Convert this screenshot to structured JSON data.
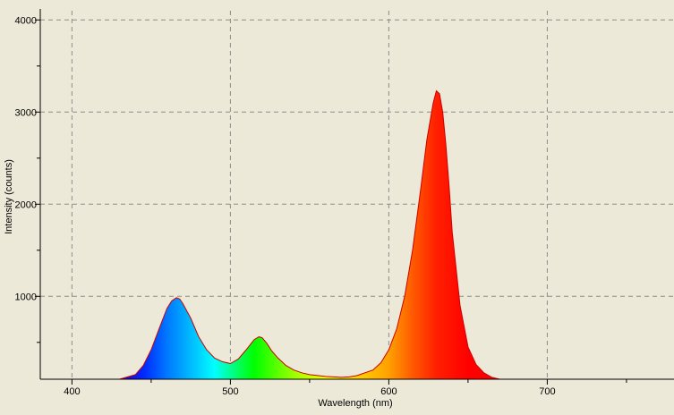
{
  "chart_data": {
    "type": "area",
    "title": "",
    "xlabel": "Wavelength (nm)",
    "ylabel": "Intensity (counts)",
    "xlim": [
      380,
      780
    ],
    "ylim": [
      100,
      4100
    ],
    "xticks": [
      400,
      500,
      600,
      700
    ],
    "yticks": [
      1000,
      2000,
      3000,
      4000
    ],
    "grid": true,
    "fill": "wavelength-spectrum-gradient",
    "outline_color": "#cc0000",
    "background_color": "#ece9d8",
    "grid_color": "#8c8c8c",
    "series": [
      {
        "name": "",
        "x": [
          430,
          440,
          445,
          450,
          455,
          460,
          463,
          466,
          468,
          470,
          475,
          480,
          485,
          490,
          495,
          500,
          505,
          510,
          515,
          518,
          520,
          523,
          526,
          530,
          535,
          540,
          545,
          550,
          560,
          570,
          575,
          580,
          590,
          595,
          600,
          605,
          610,
          615,
          620,
          624,
          628,
          630,
          632,
          634,
          636,
          638,
          640,
          645,
          650,
          655,
          660,
          665,
          670,
          680
        ],
        "y": [
          100,
          150,
          250,
          420,
          650,
          870,
          950,
          985,
          970,
          920,
          760,
          560,
          420,
          330,
          290,
          270,
          320,
          420,
          530,
          560,
          550,
          490,
          410,
          330,
          250,
          200,
          170,
          150,
          130,
          120,
          125,
          140,
          200,
          280,
          420,
          650,
          1000,
          1500,
          2150,
          2700,
          3100,
          3230,
          3200,
          3000,
          2650,
          2200,
          1700,
          900,
          450,
          260,
          170,
          120,
          100,
          100
        ]
      }
    ]
  }
}
